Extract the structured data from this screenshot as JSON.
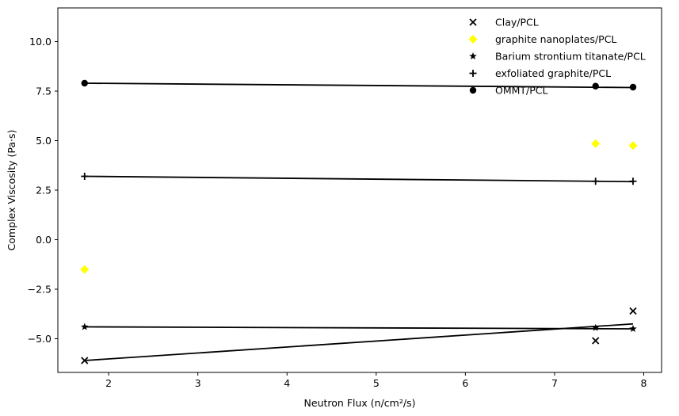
{
  "chart_data": {
    "type": "scatter",
    "title": "",
    "xlabel": "Neutron Flux (n/cm²/s)",
    "ylabel": "Complex Viscosity (Pa·s)",
    "xlim": [
      1.43,
      8.2
    ],
    "ylim": [
      -6.7,
      11.7
    ],
    "x_ticks": [
      2,
      3,
      4,
      5,
      6,
      7,
      8
    ],
    "y_ticks": [
      -5.0,
      -2.5,
      0.0,
      2.5,
      5.0,
      7.5,
      10.0
    ],
    "x_tick_labels": [
      "2",
      "3",
      "4",
      "5",
      "6",
      "7",
      "8"
    ],
    "y_tick_labels": [
      "−5.0",
      "−2.5",
      "0.0",
      "2.5",
      "5.0",
      "7.5",
      "10.0"
    ],
    "grid": false,
    "legend_position": "top-right",
    "series": [
      {
        "name": "Clay/PCL",
        "marker": "x",
        "color": "#000000",
        "x": [
          1.73,
          7.46,
          7.88
        ],
        "y": [
          -6.1,
          -5.1,
          -3.6
        ],
        "fit_line": {
          "x": [
            1.73,
            7.88
          ],
          "y": [
            -6.1,
            -4.25
          ]
        }
      },
      {
        "name": "graphite nanoplates/PCL",
        "marker": "diamond",
        "color": "#ffff00",
        "x": [
          1.73,
          7.46,
          7.88
        ],
        "y": [
          -1.5,
          4.85,
          4.75
        ]
      },
      {
        "name": "Barium strontium titanate/PCL",
        "marker": "star",
        "color": "#000000",
        "x": [
          1.73,
          7.46,
          7.88
        ],
        "y": [
          -4.4,
          -4.45,
          -4.5
        ],
        "fit_line": {
          "x": [
            1.73,
            7.88
          ],
          "y": [
            -4.4,
            -4.5
          ]
        }
      },
      {
        "name": "exfoliated graphite/PCL",
        "marker": "plus",
        "color": "#000000",
        "x": [
          1.73,
          7.46,
          7.88
        ],
        "y": [
          3.2,
          2.95,
          2.95
        ],
        "fit_line": {
          "x": [
            1.73,
            7.88
          ],
          "y": [
            3.2,
            2.93
          ]
        }
      },
      {
        "name": "OMMT/PCL",
        "marker": "circle",
        "color": "#000000",
        "x": [
          1.73,
          7.46,
          7.88
        ],
        "y": [
          7.9,
          7.75,
          7.7
        ],
        "fit_line": {
          "x": [
            1.73,
            7.88
          ],
          "y": [
            7.9,
            7.68
          ]
        }
      }
    ]
  }
}
